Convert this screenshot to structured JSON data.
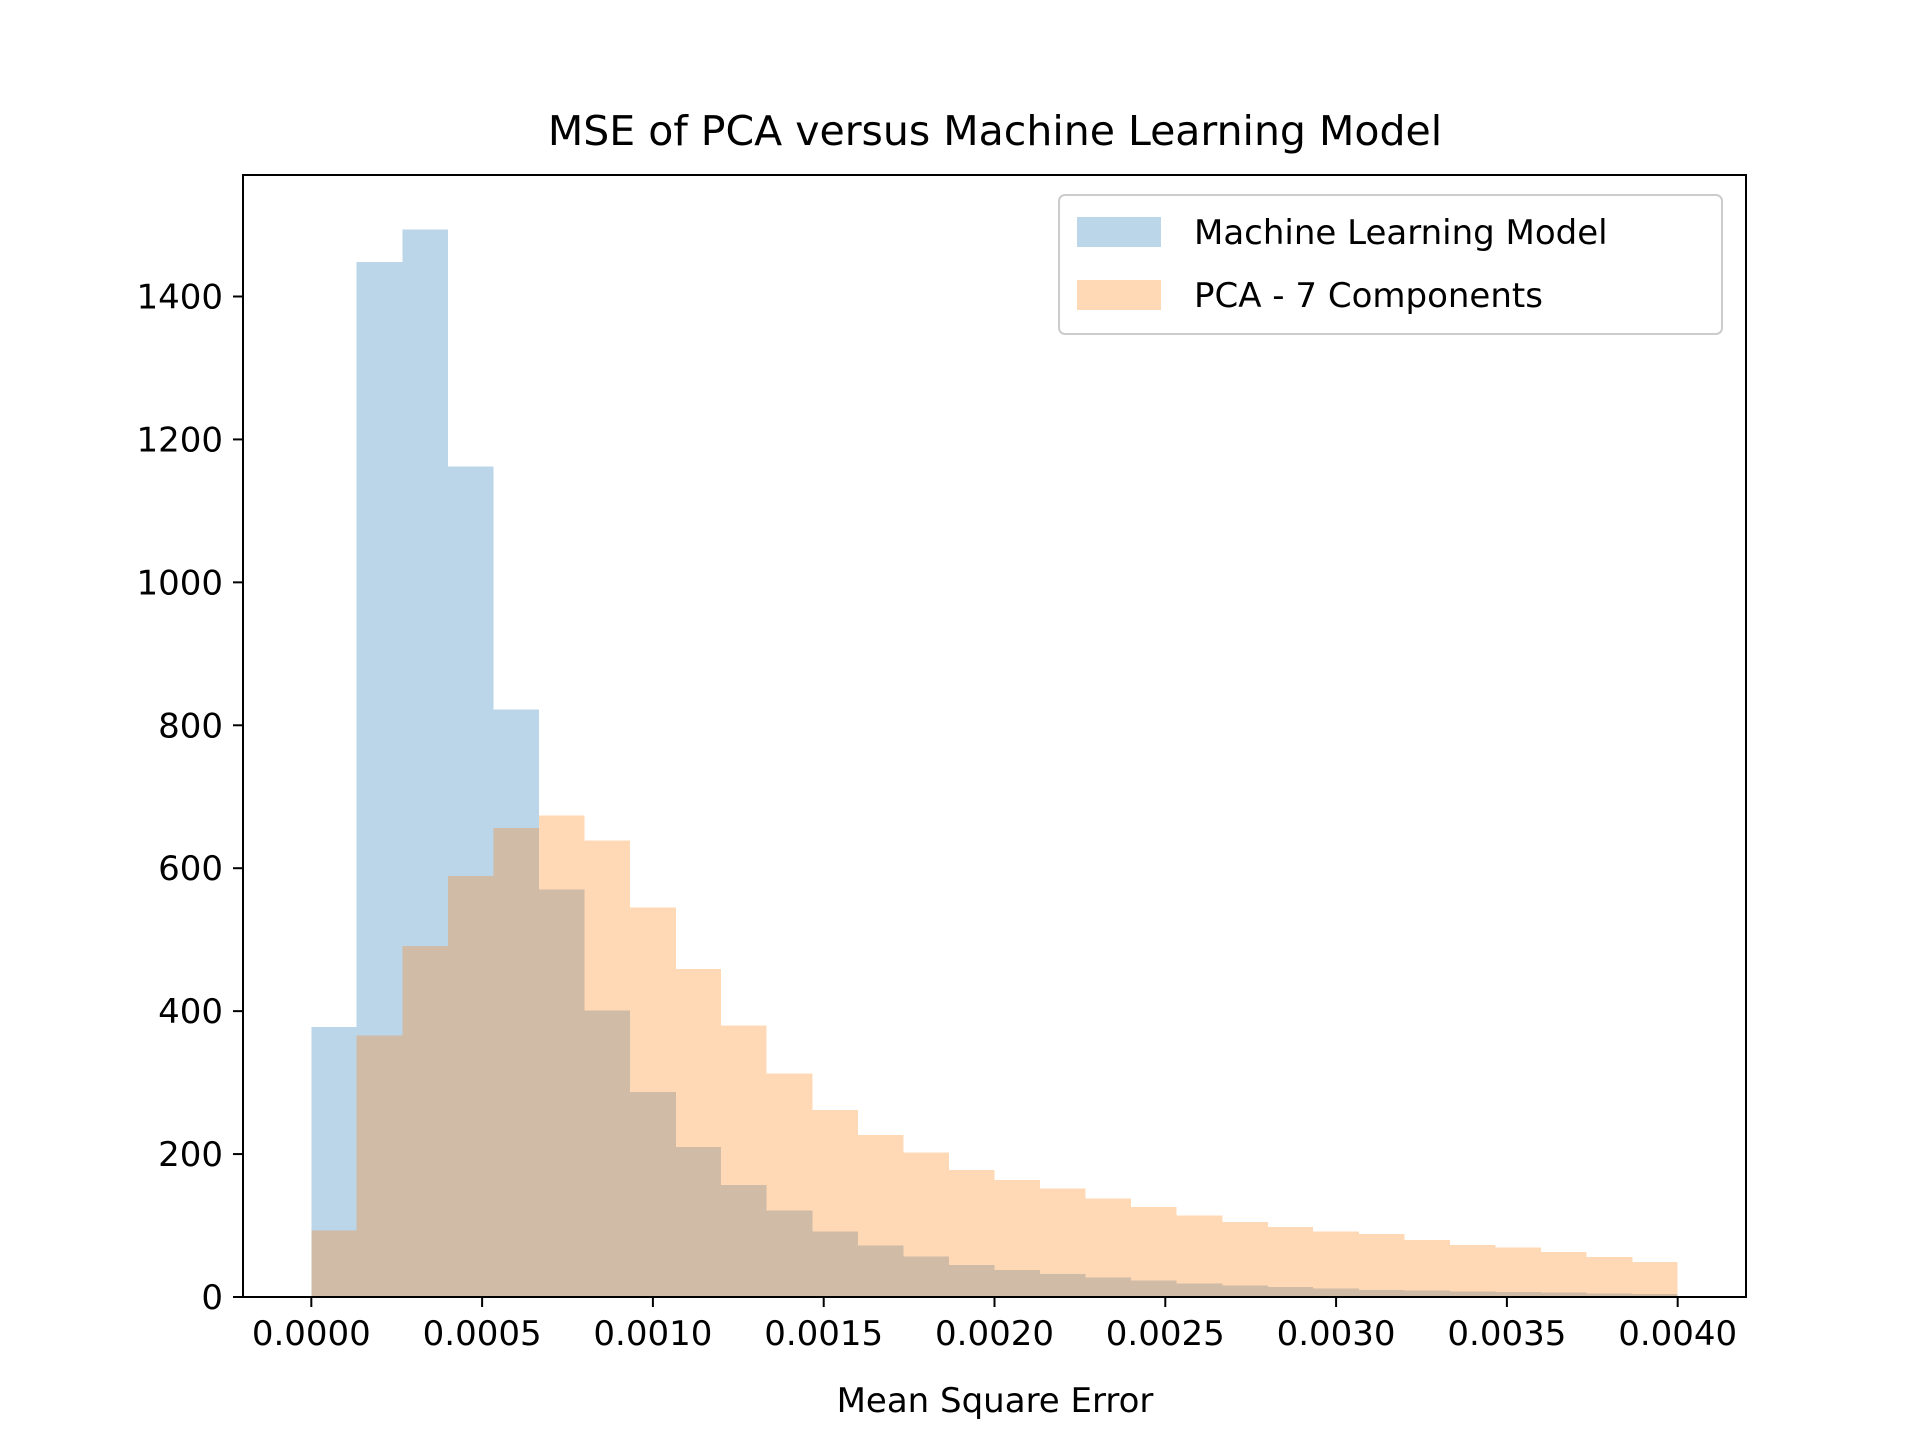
{
  "chart_data": {
    "type": "histogram",
    "title": "MSE of PCA versus Machine Learning Model",
    "xlabel": "Mean Square Error",
    "ylabel": "",
    "xlim": [
      -0.0002,
      0.0042
    ],
    "ylim": [
      0,
      1570
    ],
    "x_ticks": [
      0.0,
      0.0005,
      0.001,
      0.0015,
      0.002,
      0.0025,
      0.003,
      0.0035,
      0.004
    ],
    "x_tick_labels": [
      "0.0000",
      "0.0005",
      "0.0010",
      "0.0015",
      "0.0020",
      "0.0025",
      "0.0030",
      "0.0035",
      "0.0040"
    ],
    "y_ticks": [
      0,
      200,
      400,
      600,
      800,
      1000,
      1200,
      1400
    ],
    "y_tick_labels": [
      "0",
      "200",
      "400",
      "600",
      "800",
      "1000",
      "1200",
      "1400"
    ],
    "grid": false,
    "legend_position": "top-right",
    "bin_edges": [
      0.0,
      0.000133,
      0.000267,
      0.0004,
      0.000533,
      0.000667,
      0.0008,
      0.000933,
      0.001067,
      0.0012,
      0.001333,
      0.001467,
      0.0016,
      0.001733,
      0.001867,
      0.002,
      0.002133,
      0.002267,
      0.0024,
      0.002533,
      0.002667,
      0.0028,
      0.002933,
      0.003067,
      0.0032,
      0.003333,
      0.003467,
      0.0036,
      0.003733,
      0.003867,
      0.004
    ],
    "series": [
      {
        "name": "Machine Learning Model",
        "color": "#1f77b4",
        "opacity": 0.3,
        "values": [
          378,
          1448,
          1494,
          1162,
          822,
          570,
          401,
          287,
          210,
          157,
          121,
          92,
          72,
          57,
          45,
          38,
          32,
          27,
          23,
          19,
          16,
          14,
          12,
          10,
          9,
          8,
          7,
          6,
          5,
          4
        ]
      },
      {
        "name": "PCA - 7 Components",
        "color": "#ff7f0e",
        "opacity": 0.3,
        "values": [
          93,
          366,
          491,
          589,
          656,
          674,
          639,
          545,
          459,
          380,
          313,
          262,
          227,
          202,
          178,
          164,
          152,
          138,
          126,
          114,
          105,
          98,
          92,
          88,
          80,
          73,
          69,
          63,
          56,
          49
        ]
      }
    ]
  }
}
